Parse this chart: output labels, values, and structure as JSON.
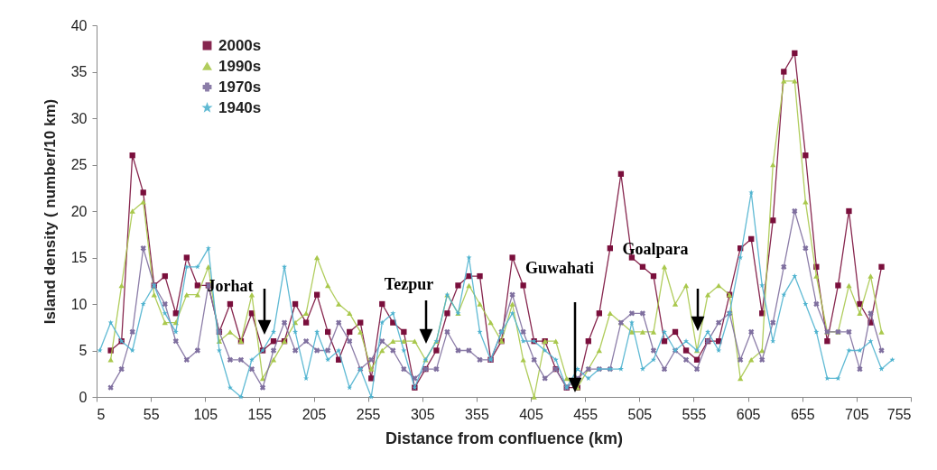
{
  "chart_data": {
    "type": "line",
    "xlabel": "Distance from confluence (km)",
    "ylabel": "Island density ( number/10 km)",
    "x": [
      8,
      18,
      28,
      38,
      48,
      58,
      68,
      78,
      88,
      98,
      108,
      118,
      128,
      138,
      148,
      158,
      168,
      178,
      188,
      198,
      208,
      218,
      228,
      238,
      248,
      258,
      268,
      278,
      288,
      298,
      308,
      318,
      328,
      338,
      348,
      358,
      368,
      378,
      388,
      398,
      408,
      418,
      428,
      438,
      448,
      458,
      468,
      478,
      488,
      498,
      508,
      518,
      528,
      538,
      548,
      558,
      568,
      578,
      588,
      598,
      608,
      618,
      628,
      638,
      648,
      658,
      668,
      678,
      688,
      698,
      708,
      718,
      728,
      738
    ],
    "series": [
      {
        "name": "2000s",
        "color": "#7a0f3c",
        "marker": "square",
        "values": [
          null,
          5,
          6,
          26,
          22,
          12,
          13,
          9,
          15,
          12,
          12,
          7,
          10,
          6,
          9,
          5,
          6,
          6,
          10,
          8,
          11,
          7,
          4,
          7,
          8,
          2,
          10,
          8,
          7,
          1,
          3,
          5,
          9,
          12,
          13,
          13,
          4,
          6,
          15,
          12,
          6,
          6,
          3,
          1,
          1,
          6,
          9,
          16,
          24,
          15,
          14,
          13,
          6,
          7,
          5,
          4,
          6,
          6,
          11,
          16,
          17,
          9,
          19,
          35,
          37,
          26,
          14,
          6,
          12,
          20,
          10,
          8,
          14,
          null
        ]
      },
      {
        "name": "1990s",
        "color": "#a9c84c",
        "marker": "triangle",
        "values": [
          null,
          4,
          12,
          20,
          21,
          11,
          8,
          8,
          11,
          11,
          14,
          6,
          7,
          6,
          11,
          2,
          4,
          6,
          8,
          9,
          15,
          12,
          10,
          9,
          7,
          3,
          5,
          6,
          6,
          6,
          4,
          6,
          11,
          9,
          12,
          10,
          8,
          6,
          10,
          4,
          0,
          6,
          6,
          2,
          1,
          3,
          5,
          9,
          8,
          7,
          7,
          7,
          14,
          10,
          12,
          5,
          11,
          12,
          11,
          2,
          4,
          5,
          25,
          34,
          34,
          21,
          13,
          7,
          7,
          12,
          9,
          13,
          7,
          null
        ]
      },
      {
        "name": "1970s",
        "color": "#7f6f9f",
        "marker": "cross",
        "values": [
          null,
          1,
          3,
          7,
          16,
          12,
          10,
          6,
          4,
          5,
          12,
          7,
          4,
          4,
          3,
          1,
          5,
          8,
          5,
          6,
          5,
          5,
          8,
          6,
          3,
          4,
          6,
          5,
          3,
          2,
          3,
          3,
          7,
          5,
          5,
          4,
          4,
          7,
          11,
          7,
          4,
          2,
          3,
          1,
          2,
          3,
          3,
          3,
          8,
          9,
          9,
          5,
          3,
          5,
          4,
          3,
          6,
          8,
          9,
          4,
          7,
          4,
          8,
          14,
          20,
          16,
          10,
          7,
          7,
          7,
          3,
          9,
          5,
          null
        ]
      },
      {
        "name": "1940s",
        "color": "#4fb3cf",
        "marker": "star",
        "values": [
          5,
          8,
          6,
          5,
          10,
          12,
          9,
          7,
          14,
          14,
          16,
          5,
          1,
          0,
          4,
          5,
          7,
          14,
          7,
          2,
          7,
          4,
          5,
          1,
          3,
          0,
          8,
          9,
          5,
          1,
          4,
          6,
          11,
          9,
          15,
          7,
          4,
          7,
          9,
          6,
          6,
          5,
          4,
          1,
          3,
          2,
          3,
          3,
          3,
          8,
          3,
          4,
          7,
          5,
          6,
          5,
          7,
          5,
          9,
          15,
          22,
          12,
          6,
          11,
          13,
          10,
          7,
          2,
          2,
          5,
          5,
          6,
          3,
          4
        ]
      }
    ],
    "xlim": [
      5,
      755
    ],
    "xticks": [
      5,
      55,
      105,
      155,
      205,
      255,
      305,
      355,
      405,
      455,
      505,
      555,
      605,
      655,
      705,
      755
    ],
    "ylim": [
      0,
      40
    ],
    "yticks": [
      0,
      5,
      10,
      15,
      20,
      25,
      30,
      35,
      40
    ],
    "legend": "top left",
    "annotations": [
      "Jorhat",
      "Tezpur",
      "Guwahati",
      "Goalpara"
    ]
  }
}
